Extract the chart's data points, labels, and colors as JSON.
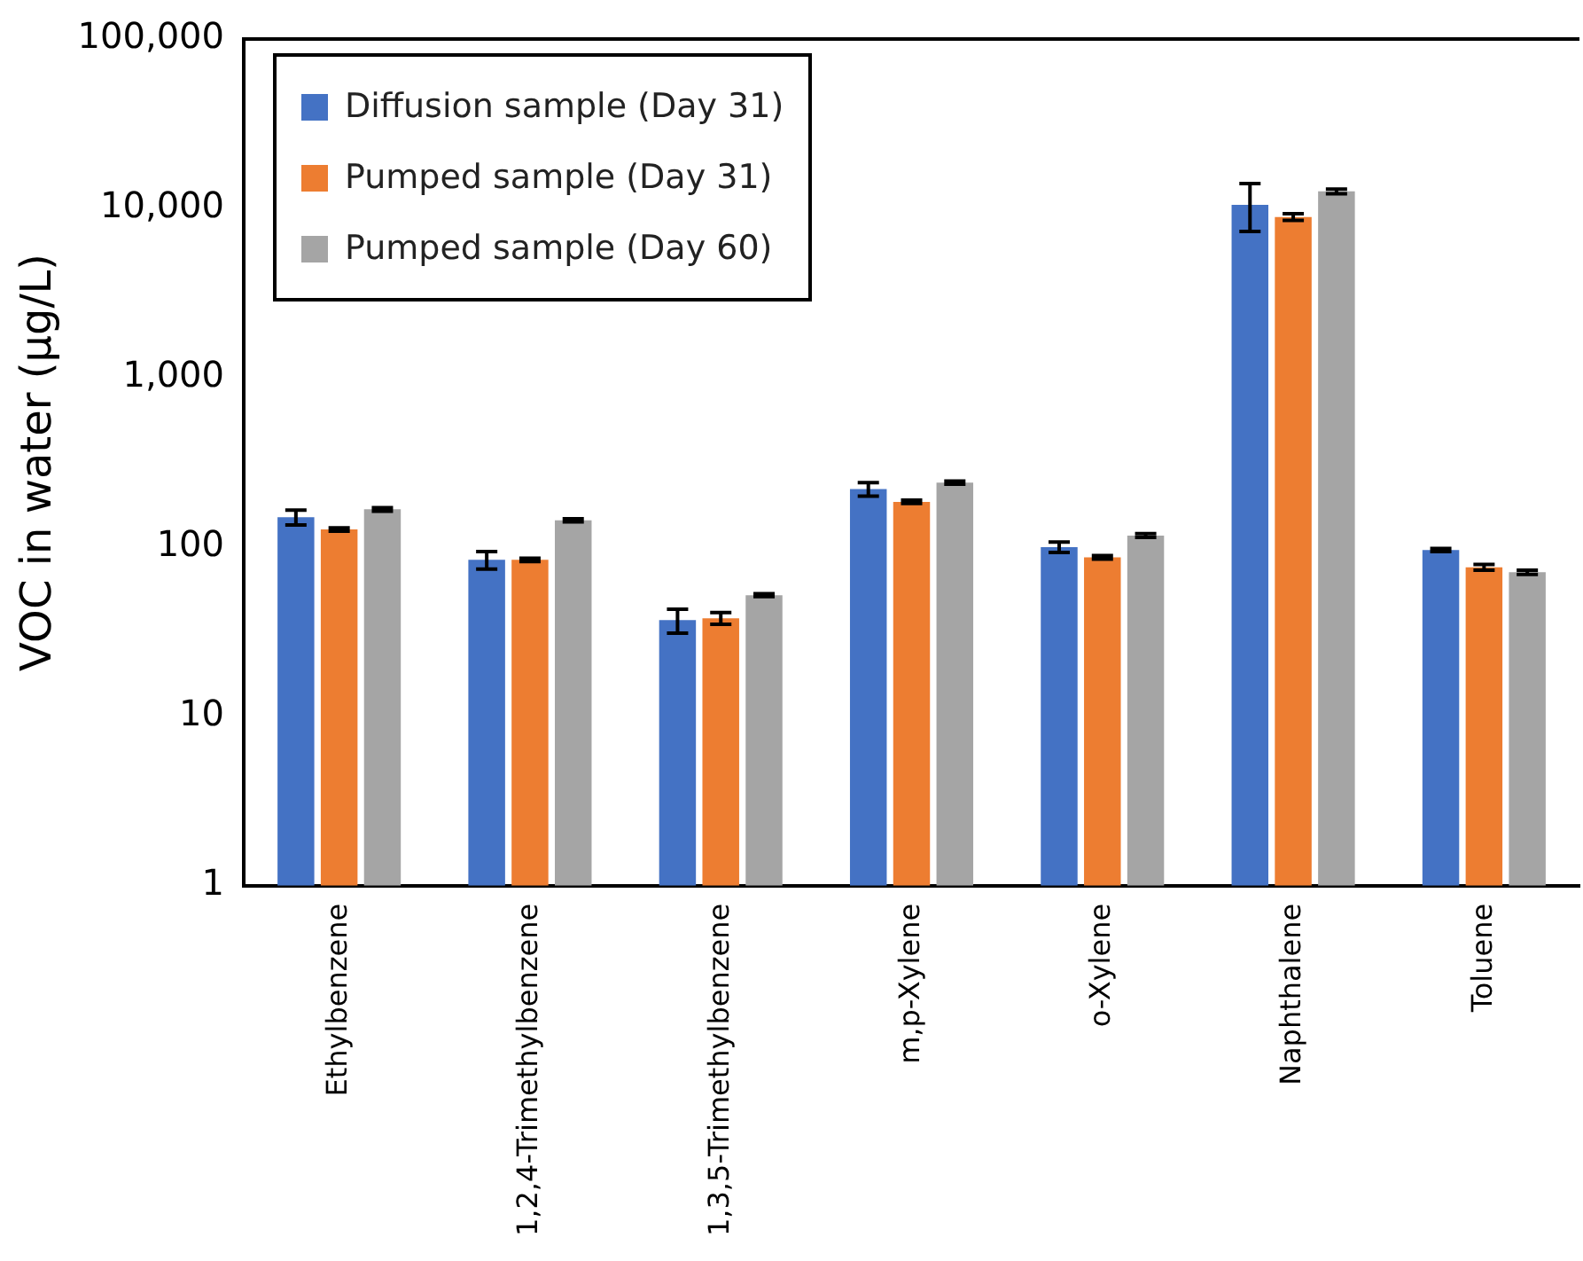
{
  "chart_data": {
    "type": "bar",
    "ylabel": "VOC in water (µg/L)",
    "log": true,
    "grid": false,
    "legend": "top left",
    "categories": [
      "Ethylbenzene",
      "1,2,4-Trimethylbenzene",
      "1,3,5-Trimethylbenzene",
      "m,p-Xylene",
      "o-Xylene",
      "Naphthalene",
      "Toluene"
    ],
    "ylim": [
      1,
      100000
    ],
    "yticks": [
      1,
      10,
      100,
      {
        "value": 1000,
        "label": "1,000"
      },
      {
        "value": 10000,
        "label": "10,000"
      },
      {
        "value": 100000,
        "label": "100,000"
      }
    ],
    "series": [
      {
        "name": "Diffusion sample (Day 31)",
        "color": "#4472c4",
        "values": [
          150,
          84,
          37,
          220,
          100,
          10500,
          96
        ],
        "errors": [
          15,
          10,
          6,
          20,
          7,
          [
            7300,
            14000
          ],
          2
        ]
      },
      {
        "name": "Pumped sample (Day 31)",
        "color": "#ed7d31",
        "values": [
          127,
          84,
          38,
          185,
          87,
          8900,
          76
        ],
        "errors": [
          3,
          2,
          3,
          4,
          2,
          400,
          3
        ]
      },
      {
        "name": "Pumped sample (Day 60)",
        "color": "#a5a5a5",
        "values": [
          167,
          144,
          52,
          240,
          117,
          12600,
          71
        ],
        "errors": [
          4,
          3,
          1,
          5,
          3,
          400,
          2
        ]
      }
    ]
  }
}
